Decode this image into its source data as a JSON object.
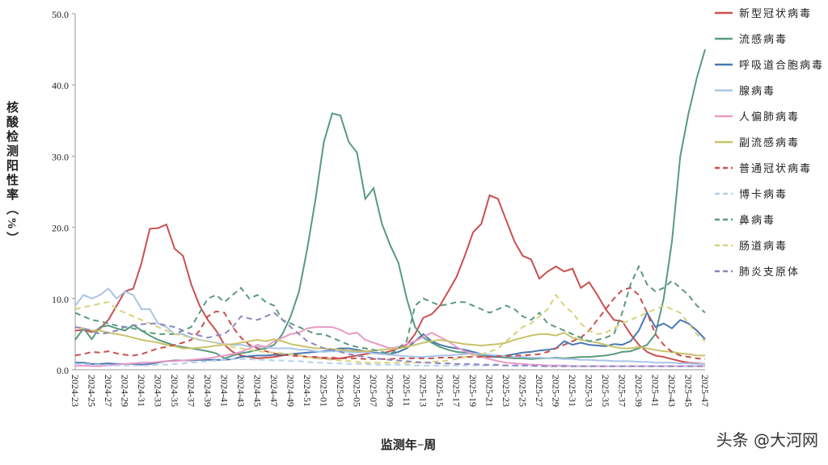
{
  "chart_data": {
    "type": "line",
    "ylabel": "核酸检测阳性率（%）",
    "xlabel": "监测年−周",
    "watermark": "头条 @大河网",
    "legend": "right",
    "ylim": [
      0,
      50
    ],
    "yticks": [
      {
        "value": 0,
        "label": "0.0"
      },
      {
        "value": 10,
        "label": "10.0"
      },
      {
        "value": 20,
        "label": "20.0"
      },
      {
        "value": 30,
        "label": "30.0"
      },
      {
        "value": 40,
        "label": "40.0"
      },
      {
        "value": 50,
        "label": "50.0"
      }
    ],
    "categories": [
      "2024-23",
      null,
      "2024-25",
      null,
      "2024-27",
      null,
      "2024-29",
      null,
      "2024-31",
      null,
      "2024-33",
      null,
      "2024-35",
      null,
      "2024-37",
      null,
      "2024-39",
      null,
      "2024-41",
      null,
      "2024-43",
      null,
      "2024-45",
      null,
      "2024-47",
      null,
      "2024-49",
      null,
      "2024-51",
      null,
      "2025-01",
      null,
      "2025-03",
      null,
      "2025-05",
      null,
      "2025-07",
      null,
      "2025-09",
      null,
      "2025-11",
      null,
      "2025-13",
      null,
      "2025-15",
      null,
      "2025-17",
      null,
      "2025-19",
      null,
      "2025-21",
      null,
      "2025-23",
      null,
      "2025-25",
      null,
      "2025-27",
      null,
      "2025-29",
      null,
      "2025-31",
      null,
      "2025-33",
      null,
      "2025-35",
      null,
      "2025-37",
      null,
      "2025-39",
      null,
      "2025-41",
      null,
      "2025-43",
      null,
      "2025-45",
      null,
      "2025-47"
    ],
    "series": [
      {
        "name": "新型冠状病毒",
        "color": "#c9504f",
        "dashed": false,
        "values": [
          5.5,
          5.6,
          5.3,
          5.8,
          7.0,
          9.0,
          11.0,
          11.4,
          15.0,
          19.8,
          19.9,
          20.4,
          17.0,
          16.0,
          12.0,
          9.0,
          7.0,
          5.5,
          3.5,
          2.5,
          2.0,
          1.8,
          1.6,
          1.7,
          1.8,
          2.0,
          2.2,
          2.0,
          1.8,
          1.7,
          1.6,
          1.5,
          1.6,
          1.8,
          2.0,
          2.2,
          2.4,
          2.3,
          2.6,
          3.0,
          3.5,
          5.0,
          7.3,
          7.8,
          9.0,
          11.0,
          13.0,
          16.0,
          19.3,
          20.5,
          24.5,
          24.0,
          21.0,
          18.0,
          16.0,
          15.5,
          12.8,
          13.8,
          14.5,
          13.8,
          14.2,
          11.5,
          12.3,
          10.5,
          8.5,
          7.0,
          6.8,
          5.0,
          3.5,
          2.5,
          2.0,
          1.8,
          1.5,
          1.2,
          1.0,
          0.9,
          0.8
        ]
      },
      {
        "name": "流感病毒",
        "color": "#5a9a7e",
        "dashed": false,
        "values": [
          4.2,
          5.8,
          4.3,
          6.0,
          6.2,
          5.8,
          5.5,
          6.3,
          5.5,
          4.8,
          4.2,
          3.8,
          3.4,
          3.2,
          3.0,
          2.8,
          2.6,
          2.3,
          1.6,
          2.0,
          2.3,
          2.5,
          2.8,
          3.0,
          3.5,
          5.0,
          7.5,
          11.0,
          17.0,
          24.0,
          32.0,
          36.0,
          35.7,
          32.0,
          30.5,
          24.0,
          25.5,
          20.5,
          17.5,
          15.0,
          10.0,
          6.0,
          4.5,
          3.8,
          3.2,
          2.8,
          2.5,
          2.4,
          2.2,
          2.0,
          1.8,
          1.8,
          1.7,
          1.6,
          1.6,
          1.5,
          1.6,
          1.6,
          1.7,
          1.6,
          1.7,
          1.8,
          1.8,
          1.9,
          2.0,
          2.2,
          2.5,
          2.6,
          3.0,
          3.5,
          5.0,
          10.0,
          18.0,
          30.0,
          36.0,
          41.0,
          45.0
        ]
      },
      {
        "name": "呼吸道合胞病毒",
        "color": "#4a78b0",
        "dashed": false,
        "values": [
          1.0,
          1.0,
          0.8,
          0.8,
          0.9,
          0.8,
          0.8,
          0.8,
          0.7,
          0.8,
          1.0,
          1.2,
          1.3,
          1.3,
          1.3,
          1.4,
          1.4,
          1.4,
          1.4,
          1.5,
          1.8,
          1.9,
          2.0,
          2.0,
          2.1,
          2.1,
          2.2,
          2.3,
          2.4,
          2.5,
          2.6,
          2.8,
          3.0,
          3.0,
          2.8,
          2.6,
          2.4,
          2.3,
          2.2,
          2.5,
          3.0,
          4.0,
          5.0,
          4.0,
          3.5,
          3.2,
          3.0,
          2.8,
          2.5,
          2.2,
          2.0,
          1.8,
          2.0,
          2.2,
          2.4,
          2.5,
          2.7,
          2.8,
          3.0,
          4.0,
          3.5,
          3.8,
          3.5,
          3.4,
          3.3,
          3.6,
          3.5,
          4.0,
          5.5,
          8.0,
          6.0,
          6.5,
          5.8,
          7.0,
          6.5,
          5.5,
          4.3
        ]
      },
      {
        "name": "腺病毒",
        "color": "#a9c4e8",
        "dashed": false,
        "values": [
          9.0,
          10.5,
          10.0,
          10.5,
          11.4,
          10.0,
          11.0,
          10.5,
          8.5,
          8.5,
          6.5,
          6.0,
          5.0,
          5.0,
          4.5,
          4.2,
          4.0,
          3.8,
          3.6,
          3.5,
          3.5,
          3.3,
          3.2,
          3.2,
          3.0,
          3.0,
          3.0,
          2.8,
          2.8,
          2.6,
          2.5,
          2.6,
          2.6,
          2.5,
          2.4,
          2.5,
          2.3,
          2.2,
          2.1,
          2.0,
          1.9,
          1.8,
          1.8,
          1.9,
          2.0,
          2.0,
          2.1,
          2.2,
          2.3,
          2.2,
          2.1,
          2.0,
          1.9,
          1.8,
          1.8,
          1.7,
          1.7,
          1.6,
          1.6,
          1.5,
          1.5,
          1.4,
          1.4,
          1.3,
          1.3,
          1.2,
          1.2,
          1.2,
          1.1,
          1.1,
          1.0,
          1.0,
          1.0,
          0.9,
          0.9,
          0.8,
          0.8
        ]
      },
      {
        "name": "人偏肺病毒",
        "color": "#e99bc5",
        "dashed": false,
        "values": [
          0.5,
          0.6,
          0.5,
          0.5,
          0.6,
          0.7,
          0.8,
          0.9,
          1.0,
          1.0,
          1.1,
          1.2,
          1.2,
          1.3,
          1.4,
          1.5,
          1.6,
          1.8,
          2.0,
          2.2,
          2.5,
          3.0,
          3.5,
          3.2,
          4.0,
          4.5,
          5.0,
          5.2,
          5.8,
          6.0,
          6.0,
          6.0,
          5.6,
          5.0,
          5.2,
          4.2,
          3.8,
          3.4,
          3.0,
          3.2,
          3.6,
          4.0,
          4.6,
          5.2,
          4.6,
          4.0,
          3.2,
          2.6,
          2.2,
          1.8,
          1.5,
          1.2,
          1.0,
          0.9,
          0.8,
          0.7,
          0.7,
          0.6,
          0.6,
          0.6,
          0.5,
          0.5,
          0.5,
          0.5,
          0.5,
          0.5,
          0.5,
          0.5,
          0.5,
          0.5,
          0.5,
          0.5,
          0.5,
          0.5,
          0.5,
          0.5,
          0.5
        ]
      },
      {
        "name": "副流感病毒",
        "color": "#c9c26a",
        "dashed": false,
        "values": [
          6.0,
          5.8,
          5.5,
          5.5,
          5.2,
          5.0,
          4.8,
          4.5,
          4.2,
          4.0,
          3.8,
          3.5,
          3.3,
          3.0,
          3.0,
          3.1,
          3.2,
          3.4,
          3.5,
          3.6,
          3.8,
          4.0,
          4.2,
          4.0,
          4.3,
          4.0,
          3.6,
          3.4,
          3.2,
          3.0,
          3.0,
          2.9,
          2.8,
          2.7,
          2.6,
          2.6,
          2.7,
          2.8,
          2.9,
          3.0,
          3.2,
          3.5,
          3.8,
          4.0,
          4.2,
          4.0,
          3.8,
          3.6,
          3.5,
          3.4,
          3.5,
          3.6,
          3.8,
          4.2,
          4.5,
          4.8,
          5.0,
          5.0,
          4.8,
          5.2,
          4.5,
          4.2,
          4.0,
          3.8,
          3.5,
          3.2,
          3.0,
          3.0,
          3.2,
          3.0,
          2.8,
          2.6,
          2.5,
          2.3,
          2.2,
          2.0,
          2.0
        ]
      },
      {
        "name": "普通冠状病毒",
        "color": "#c9504f",
        "dashed": true,
        "values": [
          2.0,
          2.2,
          2.5,
          2.4,
          2.6,
          2.3,
          2.1,
          2.0,
          2.2,
          2.6,
          3.0,
          3.2,
          3.5,
          3.8,
          4.2,
          5.5,
          7.5,
          8.2,
          8.0,
          6.0,
          4.5,
          3.5,
          3.0,
          2.6,
          2.3,
          2.1,
          2.0,
          1.9,
          1.8,
          1.8,
          1.7,
          1.7,
          1.6,
          1.6,
          1.6,
          1.5,
          1.5,
          1.5,
          1.5,
          1.6,
          1.6,
          1.6,
          1.6,
          1.6,
          1.7,
          1.7,
          1.7,
          1.8,
          1.8,
          1.8,
          1.8,
          1.9,
          1.9,
          2.0,
          2.0,
          2.1,
          2.2,
          2.5,
          3.0,
          3.5,
          4.0,
          4.5,
          5.5,
          7.0,
          8.5,
          10.0,
          11.2,
          11.5,
          10.5,
          8.0,
          5.0,
          3.5,
          2.5,
          2.0,
          1.8,
          1.6,
          1.5
        ]
      },
      {
        "name": "博卡病毒",
        "color": "#b4d0ee",
        "dashed": true,
        "values": [
          0.8,
          0.8,
          0.7,
          0.7,
          0.6,
          0.6,
          0.6,
          0.6,
          0.6,
          0.6,
          0.7,
          0.7,
          0.8,
          0.9,
          1.0,
          1.1,
          1.2,
          1.3,
          1.4,
          1.5,
          1.5,
          1.5,
          1.4,
          1.4,
          1.3,
          1.3,
          1.2,
          1.2,
          1.1,
          1.0,
          1.0,
          0.9,
          0.9,
          0.8,
          0.8,
          0.8,
          0.7,
          0.7,
          0.7,
          0.7,
          0.7,
          0.6,
          0.6,
          0.6,
          0.6,
          0.6,
          0.6,
          0.6,
          0.6,
          0.6,
          0.6,
          0.6,
          0.6,
          0.6,
          0.6,
          0.5,
          0.5,
          0.5,
          0.5,
          0.5,
          0.5,
          0.5,
          0.5,
          0.5,
          0.5,
          0.5,
          0.5,
          0.5,
          0.5,
          0.5,
          0.5,
          0.5,
          0.5,
          0.5,
          0.5,
          0.5,
          0.5
        ]
      },
      {
        "name": "鼻病毒",
        "color": "#5a9a7e",
        "dashed": true,
        "values": [
          8.0,
          7.5,
          7.0,
          6.8,
          6.5,
          6.2,
          6.0,
          5.8,
          5.5,
          5.2,
          5.0,
          5.0,
          5.0,
          5.5,
          6.0,
          8.0,
          10.0,
          10.5,
          9.5,
          10.5,
          11.5,
          10.0,
          10.5,
          9.5,
          9.0,
          7.0,
          6.5,
          6.0,
          5.5,
          5.0,
          5.0,
          4.5,
          4.0,
          3.5,
          3.2,
          3.0,
          2.8,
          2.5,
          2.2,
          3.0,
          4.0,
          9.0,
          10.0,
          9.5,
          9.0,
          9.2,
          9.5,
          9.5,
          9.0,
          8.5,
          8.0,
          8.5,
          9.0,
          8.5,
          7.5,
          7.0,
          8.0,
          6.5,
          6.0,
          5.5,
          5.0,
          4.5,
          4.0,
          4.2,
          4.5,
          5.0,
          8.0,
          12.0,
          14.5,
          12.0,
          11.0,
          11.5,
          12.5,
          11.5,
          10.5,
          9.0,
          8.0
        ]
      },
      {
        "name": "肠道病毒",
        "color": "#d6d27a",
        "dashed": true,
        "values": [
          8.5,
          8.8,
          9.0,
          9.3,
          9.5,
          8.5,
          8.0,
          7.5,
          7.0,
          6.5,
          6.0,
          5.5,
          5.0,
          4.8,
          4.5,
          4.2,
          4.0,
          3.8,
          3.5,
          3.2,
          3.0,
          2.8,
          2.6,
          2.5,
          2.4,
          2.3,
          2.2,
          2.0,
          1.8,
          1.6,
          1.5,
          1.4,
          1.3,
          1.2,
          1.1,
          1.0,
          1.0,
          1.0,
          1.0,
          1.0,
          1.0,
          1.0,
          1.0,
          1.1,
          1.2,
          1.3,
          1.5,
          1.8,
          2.0,
          2.2,
          2.5,
          3.0,
          4.0,
          5.0,
          6.0,
          6.5,
          7.5,
          8.5,
          10.5,
          9.0,
          8.0,
          6.5,
          5.5,
          5.0,
          5.2,
          5.8,
          6.5,
          7.0,
          7.5,
          8.0,
          8.5,
          9.0,
          8.5,
          8.0,
          6.5,
          5.0,
          4.0
        ]
      },
      {
        "name": "肺炎支原体",
        "color": "#8e86c0",
        "dashed": true,
        "values": [
          6.0,
          5.8,
          5.5,
          5.0,
          5.2,
          5.5,
          6.0,
          6.2,
          6.4,
          6.5,
          6.5,
          6.2,
          6.0,
          5.5,
          5.0,
          4.8,
          4.5,
          4.8,
          5.0,
          6.0,
          7.5,
          7.2,
          7.0,
          7.5,
          8.0,
          7.0,
          6.0,
          5.0,
          4.0,
          3.5,
          3.0,
          2.8,
          2.5,
          2.2,
          2.0,
          1.8,
          1.6,
          1.5,
          1.4,
          1.3,
          1.2,
          1.1,
          1.0,
          1.0,
          0.9,
          0.9,
          0.8,
          0.8,
          0.8,
          0.7,
          0.7,
          0.7,
          0.6,
          0.6,
          0.6,
          0.6,
          0.5,
          0.5,
          0.5,
          0.5,
          0.5,
          0.5,
          0.5,
          0.5,
          0.5,
          0.5,
          0.5,
          0.5,
          0.5,
          0.5,
          0.5,
          0.5,
          0.5,
          0.5,
          0.5,
          0.5,
          0.5
        ]
      }
    ]
  }
}
